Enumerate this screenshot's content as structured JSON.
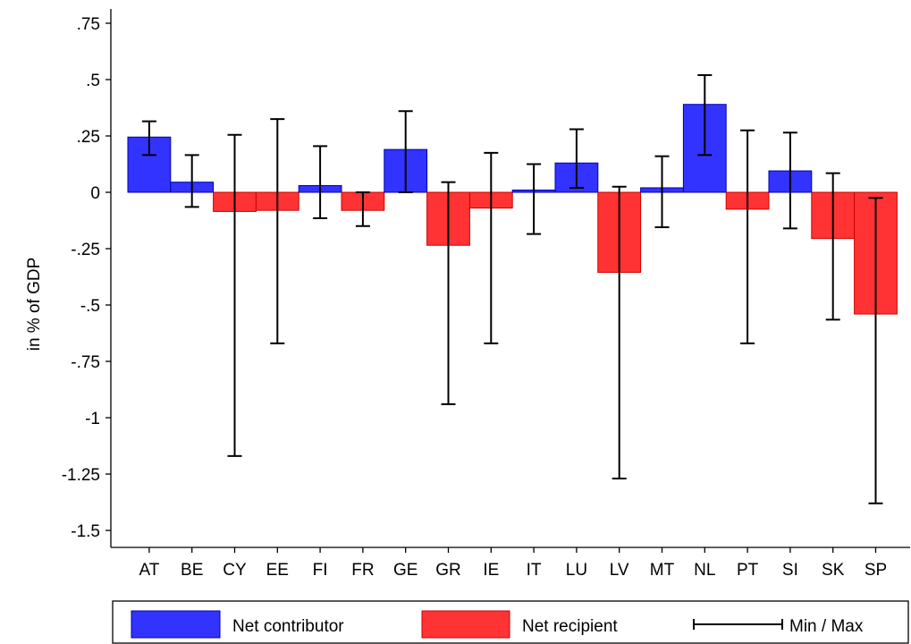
{
  "chart_data": {
    "type": "bar",
    "ylabel": "in % of  GDP",
    "categories": [
      "AT",
      "BE",
      "CY",
      "EE",
      "FI",
      "FR",
      "GE",
      "GR",
      "IE",
      "IT",
      "LU",
      "LV",
      "MT",
      "NL",
      "PT",
      "SI",
      "SK",
      "SP"
    ],
    "values": [
      0.245,
      0.045,
      -0.085,
      -0.08,
      0.03,
      -0.08,
      0.19,
      -0.235,
      -0.07,
      0.01,
      0.13,
      -0.355,
      0.02,
      0.39,
      -0.075,
      0.095,
      -0.205,
      -0.54
    ],
    "group": [
      "contributor",
      "contributor",
      "recipient",
      "recipient",
      "contributor",
      "recipient",
      "contributor",
      "recipient",
      "recipient",
      "contributor",
      "contributor",
      "recipient",
      "contributor",
      "contributor",
      "recipient",
      "contributor",
      "recipient",
      "recipient"
    ],
    "min": [
      0.165,
      -0.065,
      -1.17,
      -0.67,
      -0.115,
      -0.15,
      0.0,
      -0.94,
      -0.67,
      -0.185,
      0.02,
      -1.27,
      -0.155,
      0.165,
      -0.67,
      -0.16,
      -0.565,
      -1.38
    ],
    "max": [
      0.315,
      0.165,
      0.255,
      0.325,
      0.205,
      0.0,
      0.36,
      0.045,
      0.175,
      0.125,
      0.28,
      0.025,
      0.16,
      0.52,
      0.275,
      0.265,
      0.085,
      -0.025
    ],
    "ylim": [
      -1.6,
      0.82
    ],
    "yticks": [
      0.75,
      0.5,
      0.25,
      0,
      -0.25,
      -0.5,
      -0.75,
      -1,
      -1.25,
      -1.5
    ],
    "ytick_labels": [
      ".75",
      ".5",
      ".25",
      "0",
      "-.25",
      "-.5",
      "-.75",
      "-1",
      "-1.25",
      "-1.5"
    ],
    "grid": false,
    "legend_position": "bottom",
    "legend": {
      "contributor": "Net contributor",
      "recipient": "Net recipient",
      "minmax": "Min / Max"
    },
    "colors": {
      "contributor": "#3333FF",
      "contributor_edge": "#0000AA",
      "recipient": "#FF3333",
      "recipient_edge": "#CC0000",
      "whisker": "#000000"
    }
  }
}
